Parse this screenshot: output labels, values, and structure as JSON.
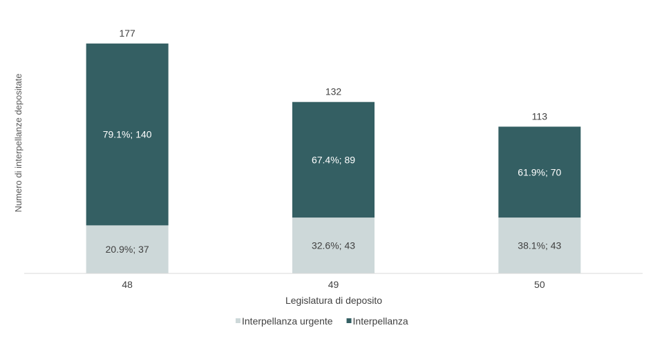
{
  "chart_data": {
    "type": "bar",
    "stacked": true,
    "title": "",
    "xlabel": "Legislatura di deposito",
    "ylabel": "Numero di interpellanze depositate",
    "categories": [
      "48",
      "49",
      "50"
    ],
    "ylim": [
      0,
      185
    ],
    "grid": false,
    "legend_position": "bottom",
    "series": [
      {
        "name": "Interpellanza urgente",
        "color": "#cdd8d9",
        "values": [
          37,
          43,
          43
        ],
        "labels": [
          "20.9%; 37",
          "32.6%; 43",
          "38.1%; 43"
        ]
      },
      {
        "name": "Interpellanza",
        "color": "#345f63",
        "values": [
          140,
          89,
          70
        ],
        "labels": [
          "79.1%; 140",
          "67.4%; 89",
          "61.9%; 70"
        ]
      }
    ],
    "totals": [
      "177",
      "132",
      "113"
    ]
  }
}
